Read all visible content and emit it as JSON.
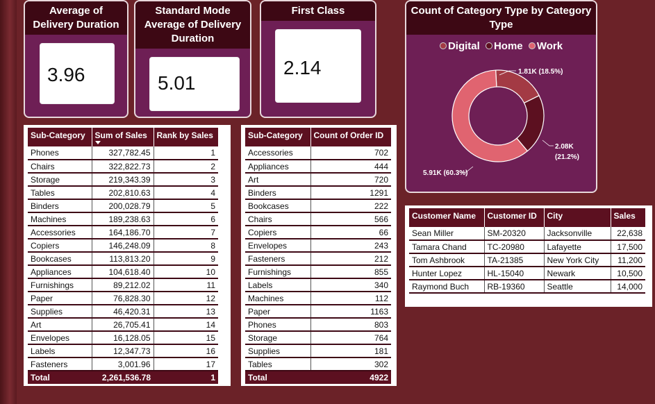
{
  "kpis": {
    "avg_delivery": {
      "title": "Average of Delivery Duration",
      "value": "3.96"
    },
    "std_avg_delivery": {
      "title": "Standard Mode Average of Delivery Duration",
      "value": "5.01"
    },
    "first_class": {
      "title": "First Class",
      "value": "2.14"
    }
  },
  "donut": {
    "title": "Count of Category Type by Category Type",
    "legend": [
      {
        "label": "Digital",
        "color": "#a33a44"
      },
      {
        "label": "Home",
        "color": "#5c1020"
      },
      {
        "label": "Work",
        "color": "#e06470"
      }
    ],
    "labels": {
      "digital": "1.81K (18.5%)",
      "home_line1": "2.08K",
      "home_line2": "(21.2%)",
      "work": "5.91K (60.3%)"
    }
  },
  "chart_data": {
    "type": "pie",
    "title": "Count of Category Type by Category Type",
    "categories": [
      "Digital",
      "Home",
      "Work"
    ],
    "values": [
      1810,
      2080,
      5910
    ],
    "percentages": [
      18.5,
      21.2,
      60.3
    ],
    "colors": [
      "#a33a44",
      "#5c1020",
      "#e06470"
    ],
    "legend_position": "top"
  },
  "sales_table": {
    "headers": [
      "Sub-Category",
      "Sum of Sales",
      "Rank by Sales"
    ],
    "rows": [
      [
        "Phones",
        "327,782.45",
        "1"
      ],
      [
        "Chairs",
        "322,822.73",
        "2"
      ],
      [
        "Storage",
        "219,343.39",
        "3"
      ],
      [
        "Tables",
        "202,810.63",
        "4"
      ],
      [
        "Binders",
        "200,028.79",
        "5"
      ],
      [
        "Machines",
        "189,238.63",
        "6"
      ],
      [
        "Accessories",
        "164,186.70",
        "7"
      ],
      [
        "Copiers",
        "146,248.09",
        "8"
      ],
      [
        "Bookcases",
        "113,813.20",
        "9"
      ],
      [
        "Appliances",
        "104,618.40",
        "10"
      ],
      [
        "Furnishings",
        "89,212.02",
        "11"
      ],
      [
        "Paper",
        "76,828.30",
        "12"
      ],
      [
        "Supplies",
        "46,420.31",
        "13"
      ],
      [
        "Art",
        "26,705.41",
        "14"
      ],
      [
        "Envelopes",
        "16,128.05",
        "15"
      ],
      [
        "Labels",
        "12,347.73",
        "16"
      ],
      [
        "Fasteners",
        "3,001.96",
        "17"
      ]
    ],
    "total": [
      "Total",
      "2,261,536.78",
      "1"
    ]
  },
  "orders_table": {
    "headers": [
      "Sub-Category",
      "Count of Order ID"
    ],
    "rows": [
      [
        "Accessories",
        "702"
      ],
      [
        "Appliances",
        "444"
      ],
      [
        "Art",
        "720"
      ],
      [
        "Binders",
        "1291"
      ],
      [
        "Bookcases",
        "222"
      ],
      [
        "Chairs",
        "566"
      ],
      [
        "Copiers",
        "66"
      ],
      [
        "Envelopes",
        "243"
      ],
      [
        "Fasteners",
        "212"
      ],
      [
        "Furnishings",
        "855"
      ],
      [
        "Labels",
        "340"
      ],
      [
        "Machines",
        "112"
      ],
      [
        "Paper",
        "1163"
      ],
      [
        "Phones",
        "803"
      ],
      [
        "Storage",
        "764"
      ],
      [
        "Supplies",
        "181"
      ],
      [
        "Tables",
        "302"
      ]
    ],
    "total": [
      "Total",
      "4922"
    ]
  },
  "customer_table": {
    "headers": [
      "Customer Name",
      "Customer ID",
      "City",
      "Sales"
    ],
    "rows": [
      [
        "Sean Miller",
        "SM-20320",
        "Jacksonville",
        "22,638"
      ],
      [
        "Tamara Chand",
        "TC-20980",
        "Lafayette",
        "17,500"
      ],
      [
        "Tom Ashbrook",
        "TA-21385",
        "New York City",
        "11,200"
      ],
      [
        "Hunter Lopez",
        "HL-15040",
        "Newark",
        "10,500"
      ],
      [
        "Raymond Buch",
        "RB-19360",
        "Seattle",
        "14,000"
      ]
    ]
  }
}
